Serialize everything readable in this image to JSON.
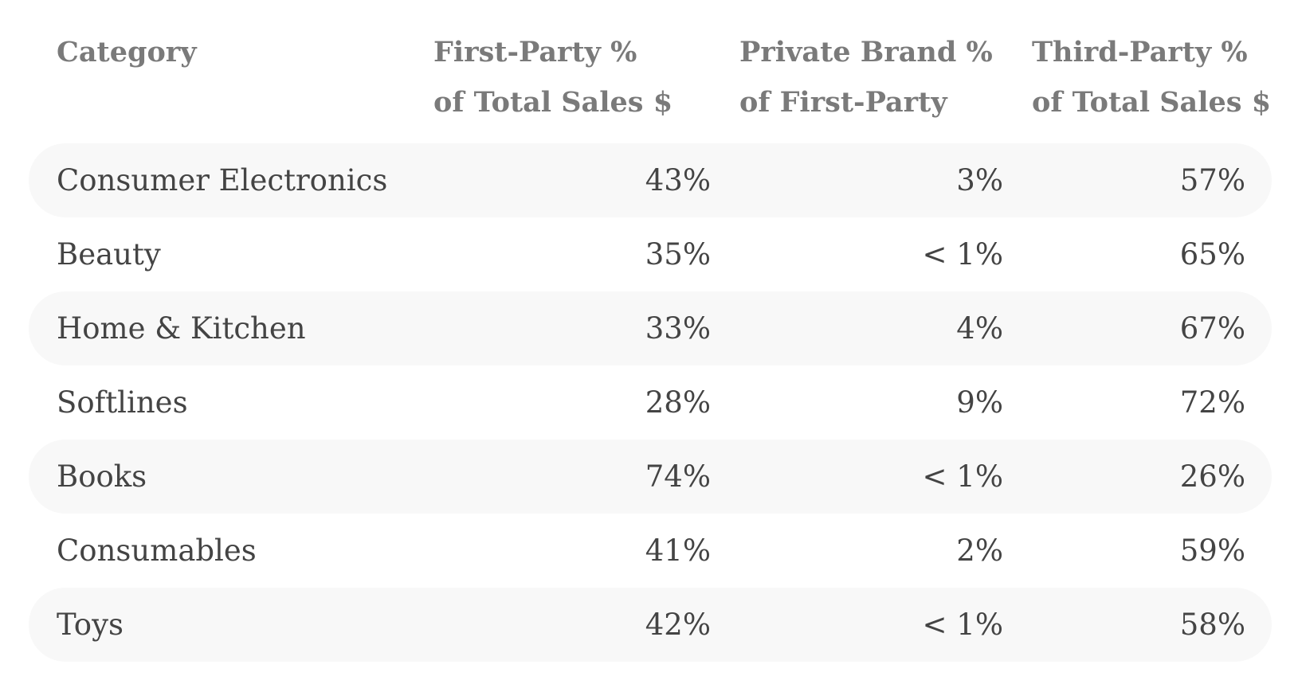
{
  "table": {
    "headers": {
      "category": "Category",
      "first_party": [
        "First-Party %",
        "of Total Sales $"
      ],
      "private_brand": [
        "Private Brand %",
        "of First-Party"
      ],
      "third_party": [
        "Third-Party %",
        "of Total Sales $"
      ]
    },
    "rows": [
      {
        "category": "Consumer Electronics",
        "first_party": "43%",
        "private_brand": "3%",
        "third_party": "57%"
      },
      {
        "category": "Beauty",
        "first_party": "35%",
        "private_brand": "< 1%",
        "third_party": "65%"
      },
      {
        "category": "Home & Kitchen",
        "first_party": "33%",
        "private_brand": "4%",
        "third_party": "67%"
      },
      {
        "category": "Softlines",
        "first_party": "28%",
        "private_brand": "9%",
        "third_party": "72%"
      },
      {
        "category": "Books",
        "first_party": "74%",
        "private_brand": "< 1%",
        "third_party": "26%"
      },
      {
        "category": "Consumables",
        "first_party": "41%",
        "private_brand": "2%",
        "third_party": "59%"
      },
      {
        "category": "Toys",
        "first_party": "42%",
        "private_brand": "< 1%",
        "third_party": "58%"
      }
    ]
  },
  "colors": {
    "header_text": "#7a7a7a",
    "body_text": "#444444",
    "stripe": "#f8f8f8",
    "background": "#ffffff"
  }
}
